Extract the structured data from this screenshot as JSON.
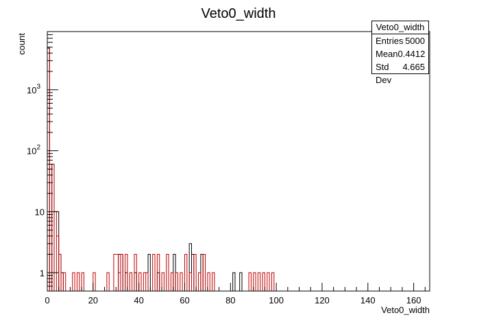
{
  "chart_data": {
    "type": "histogram",
    "title": "Veto0_width",
    "xlabel": "Veto0_width",
    "ylabel": "count",
    "xlim": [
      0,
      167
    ],
    "ylim": [
      0.5,
      9000
    ],
    "yscale": "log",
    "xticks": [
      "0",
      "20",
      "40",
      "60",
      "80",
      "100",
      "120",
      "140",
      "160"
    ],
    "yticks": [
      {
        "value": 1,
        "base": "1",
        "exp": ""
      },
      {
        "value": 10,
        "base": "10",
        "exp": ""
      },
      {
        "value": 100,
        "base": "10",
        "exp": "2"
      },
      {
        "value": 1000,
        "base": "10",
        "exp": "3"
      }
    ],
    "grid": false,
    "series": [
      {
        "color": "#000000",
        "bins": [
          {
            "x0": 0,
            "x1": 1,
            "v": 4800
          },
          {
            "x0": 1,
            "x1": 2,
            "v": 40
          },
          {
            "x0": 2,
            "x1": 3,
            "v": 60
          },
          {
            "x0": 3,
            "x1": 5,
            "v": 10
          },
          {
            "x0": 5,
            "x1": 6,
            "v": 2
          },
          {
            "x0": 6,
            "x1": 7,
            "v": 1
          },
          {
            "x0": 31,
            "x1": 33,
            "v": 2
          },
          {
            "x0": 34,
            "x1": 35,
            "v": 1
          },
          {
            "x0": 38,
            "x1": 39,
            "v": 1
          },
          {
            "x0": 44,
            "x1": 45,
            "v": 2
          },
          {
            "x0": 48,
            "x1": 49,
            "v": 1
          },
          {
            "x0": 55,
            "x1": 56,
            "v": 2
          },
          {
            "x0": 62,
            "x1": 63,
            "v": 3
          },
          {
            "x0": 63,
            "x1": 64,
            "v": 2
          },
          {
            "x0": 67,
            "x1": 68,
            "v": 2
          },
          {
            "x0": 81,
            "x1": 82,
            "v": 1
          },
          {
            "x0": 84,
            "x1": 85,
            "v": 1
          }
        ]
      },
      {
        "color": "#c00000",
        "bins": [
          {
            "x0": 0,
            "x1": 1,
            "v": 5000
          },
          {
            "x0": 1,
            "x1": 2,
            "v": 50
          },
          {
            "x0": 2,
            "x1": 3,
            "v": 60
          },
          {
            "x0": 3,
            "x1": 4,
            "v": 10
          },
          {
            "x0": 4,
            "x1": 5,
            "v": 4
          },
          {
            "x0": 5,
            "x1": 6,
            "v": 2
          },
          {
            "x0": 7,
            "x1": 8,
            "v": 1
          },
          {
            "x0": 11,
            "x1": 12,
            "v": 1
          },
          {
            "x0": 13,
            "x1": 14,
            "v": 1
          },
          {
            "x0": 15,
            "x1": 16,
            "v": 1
          },
          {
            "x0": 20,
            "x1": 21,
            "v": 1
          },
          {
            "x0": 26,
            "x1": 27,
            "v": 1
          },
          {
            "x0": 29,
            "x1": 31,
            "v": 2
          },
          {
            "x0": 31,
            "x1": 32,
            "v": 1
          },
          {
            "x0": 32,
            "x1": 33,
            "v": 2
          },
          {
            "x0": 34,
            "x1": 35,
            "v": 2
          },
          {
            "x0": 36,
            "x1": 37,
            "v": 1
          },
          {
            "x0": 38,
            "x1": 39,
            "v": 2
          },
          {
            "x0": 40,
            "x1": 41,
            "v": 1
          },
          {
            "x0": 42,
            "x1": 43,
            "v": 1
          },
          {
            "x0": 43,
            "x1": 44,
            "v": 1
          },
          {
            "x0": 46,
            "x1": 47,
            "v": 2
          },
          {
            "x0": 48,
            "x1": 49,
            "v": 2
          },
          {
            "x0": 50,
            "x1": 51,
            "v": 1
          },
          {
            "x0": 52,
            "x1": 53,
            "v": 2
          },
          {
            "x0": 54,
            "x1": 55,
            "v": 1
          },
          {
            "x0": 56,
            "x1": 57,
            "v": 1
          },
          {
            "x0": 58,
            "x1": 59,
            "v": 1
          },
          {
            "x0": 60,
            "x1": 61,
            "v": 2
          },
          {
            "x0": 62,
            "x1": 63,
            "v": 1
          },
          {
            "x0": 64,
            "x1": 65,
            "v": 2
          },
          {
            "x0": 66,
            "x1": 67,
            "v": 1
          },
          {
            "x0": 68,
            "x1": 69,
            "v": 2
          },
          {
            "x0": 70,
            "x1": 71,
            "v": 1
          },
          {
            "x0": 72,
            "x1": 73,
            "v": 1
          },
          {
            "x0": 88,
            "x1": 89,
            "v": 1
          },
          {
            "x0": 90,
            "x1": 91,
            "v": 1
          },
          {
            "x0": 92,
            "x1": 93,
            "v": 1
          },
          {
            "x0": 94,
            "x1": 95,
            "v": 1
          },
          {
            "x0": 96,
            "x1": 97,
            "v": 1
          },
          {
            "x0": 98,
            "x1": 99,
            "v": 1
          }
        ]
      }
    ]
  },
  "stats": {
    "title": "Veto0_width",
    "rows": [
      {
        "label": "Entries",
        "value": "5000"
      },
      {
        "label": "Mean",
        "value": "0.4412"
      },
      {
        "label": "Std Dev",
        "value": "4.665"
      }
    ]
  }
}
